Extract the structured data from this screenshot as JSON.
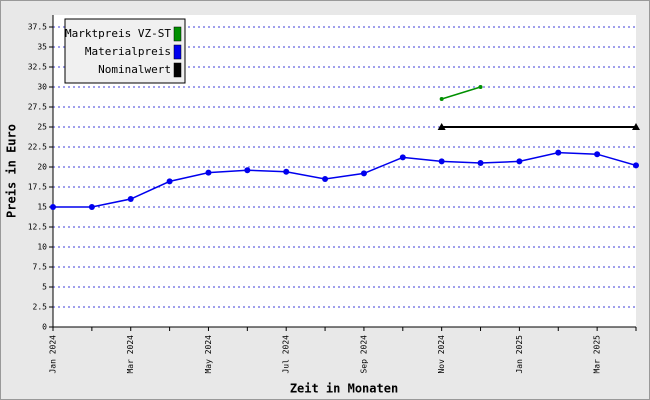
{
  "chart_data": {
    "type": "line",
    "x_label": "Zeit in Monaten",
    "y_label": "Preis in Euro",
    "categories": [
      "Jan 2024",
      null,
      "Mar 2024",
      null,
      "May 2024",
      null,
      "Jul 2024",
      null,
      "Sep 2024",
      null,
      "Nov 2024",
      null,
      "Jan 2025",
      null,
      "Mar 2025",
      null
    ],
    "series": [
      {
        "name": "Marktpreis VZ-ST",
        "color": "#009000",
        "values": [
          null,
          null,
          null,
          null,
          null,
          null,
          null,
          null,
          null,
          null,
          28.5,
          30,
          null,
          null,
          null,
          null
        ]
      },
      {
        "name": "Materialpreis",
        "color": "#0000ee",
        "values": [
          15,
          15,
          16,
          18.2,
          19.3,
          19.6,
          19.4,
          18.5,
          19.2,
          21.2,
          20.7,
          20.5,
          20.7,
          21.8,
          21.6,
          20.2
        ]
      },
      {
        "name": "Nominalwert",
        "color": "#000000",
        "values": [
          null,
          null,
          null,
          null,
          null,
          null,
          null,
          null,
          null,
          null,
          25,
          25,
          25,
          25,
          25,
          25
        ]
      }
    ],
    "ylim": [
      0,
      39
    ],
    "yticks": [
      0,
      2.5,
      5,
      7.5,
      10,
      12.5,
      15,
      17.5,
      20,
      22.5,
      25,
      27.5,
      30,
      32.5,
      35,
      37.5
    ],
    "grid": true,
    "legend": "top-left"
  }
}
